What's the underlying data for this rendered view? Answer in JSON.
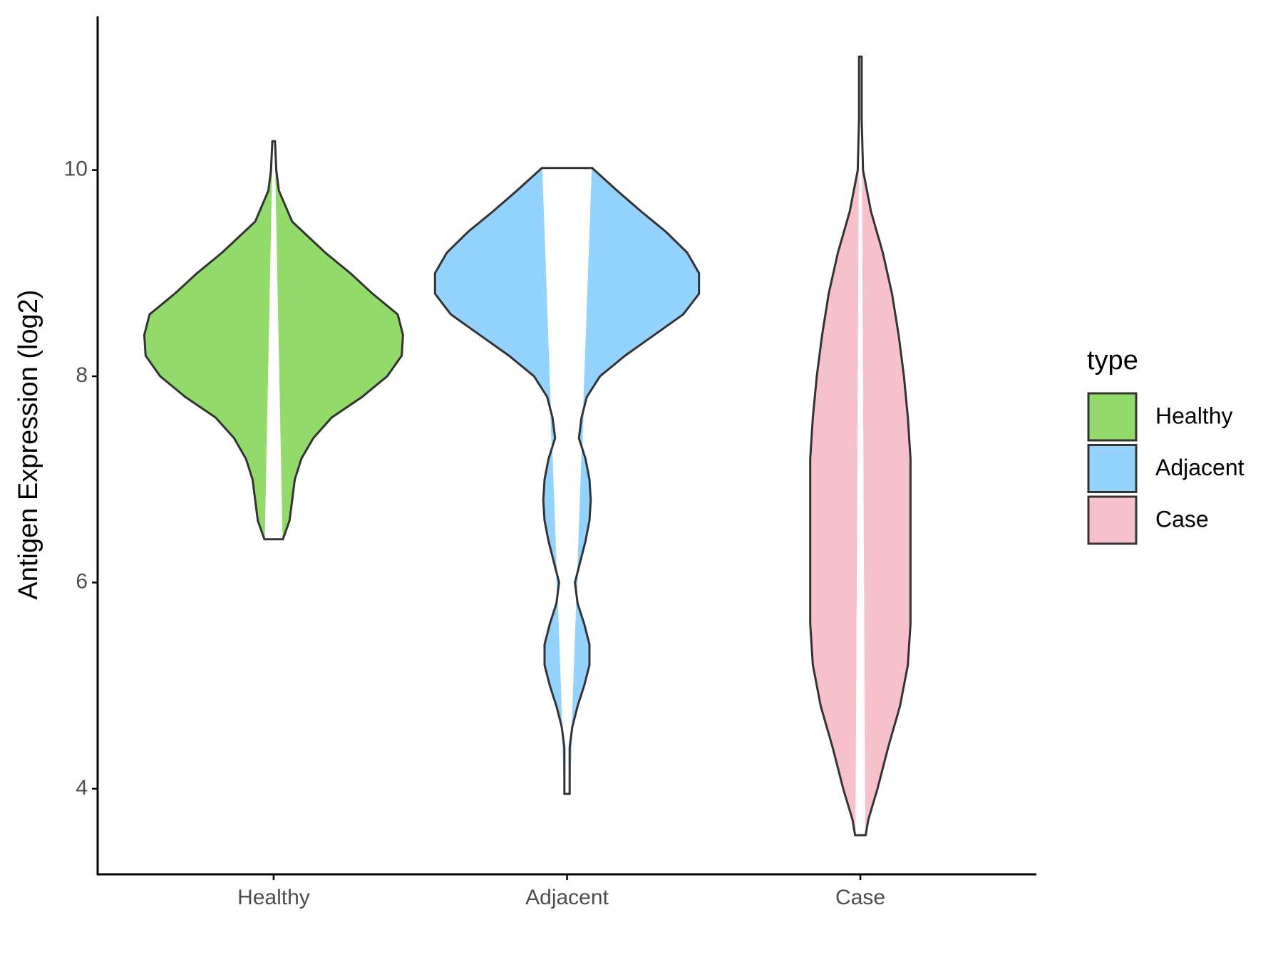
{
  "chart_data": {
    "type": "violin",
    "y_label": "Antigen Expression (log2)",
    "legend_title": "type",
    "legend_position": "right",
    "categories": [
      "Healthy",
      "Adjacent",
      "Case"
    ],
    "ylim": [
      3.17,
      11.49
    ],
    "yticks": [
      4,
      6,
      8,
      10
    ],
    "grid": false,
    "series": [
      {
        "name": "Healthy",
        "color": "#92DB6A",
        "y": [
          10.28,
          10.0,
          9.8,
          9.5,
          9.2,
          9.0,
          8.8,
          8.6,
          8.4,
          8.2,
          8.0,
          7.8,
          7.6,
          7.4,
          7.2,
          7.0,
          6.8,
          6.6,
          6.42
        ],
        "density": [
          0.01,
          0.02,
          0.04,
          0.14,
          0.39,
          0.58,
          0.75,
          0.94,
          0.98,
          0.97,
          0.86,
          0.67,
          0.44,
          0.3,
          0.21,
          0.16,
          0.14,
          0.12,
          0.07
        ]
      },
      {
        "name": "Adjacent",
        "color": "#93D3FE",
        "y": [
          10.02,
          9.8,
          9.6,
          9.4,
          9.2,
          9.0,
          8.8,
          8.6,
          8.4,
          8.2,
          8.0,
          7.8,
          7.6,
          7.4,
          7.2,
          7.0,
          6.8,
          6.6,
          6.4,
          6.2,
          6.0,
          5.8,
          5.6,
          5.4,
          5.2,
          5.0,
          4.8,
          4.6,
          4.4,
          4.2,
          3.95
        ],
        "density": [
          0.19,
          0.38,
          0.56,
          0.75,
          0.91,
          1.0,
          1.0,
          0.88,
          0.66,
          0.44,
          0.25,
          0.15,
          0.11,
          0.09,
          0.14,
          0.17,
          0.18,
          0.17,
          0.14,
          0.1,
          0.06,
          0.08,
          0.13,
          0.17,
          0.17,
          0.13,
          0.08,
          0.04,
          0.02,
          0.02,
          0.02
        ]
      },
      {
        "name": "Case",
        "color": "#F7C1CC",
        "y": [
          11.1,
          10.5,
          10.0,
          9.6,
          9.2,
          8.8,
          8.4,
          8.0,
          7.6,
          7.2,
          6.8,
          6.4,
          6.0,
          5.6,
          5.2,
          4.8,
          4.4,
          4.0,
          3.7,
          3.55
        ],
        "density": [
          0.01,
          0.01,
          0.02,
          0.08,
          0.17,
          0.24,
          0.29,
          0.33,
          0.36,
          0.38,
          0.38,
          0.38,
          0.38,
          0.38,
          0.36,
          0.3,
          0.21,
          0.13,
          0.06,
          0.04
        ]
      }
    ]
  }
}
